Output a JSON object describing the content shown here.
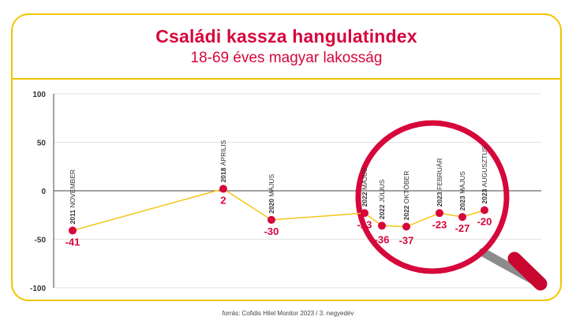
{
  "title": "Családi kassza hangulatindex",
  "subtitle": "18-69 éves magyar lakosság",
  "footer": "forrás: Cofidis Hitel Monitor 2023 / 3. negyedév",
  "colors": {
    "accent": "#d6073b",
    "frame": "#f2c400",
    "line": "#f5c518",
    "magnifier": "#d6073b"
  },
  "chart_data": {
    "type": "line",
    "ylim": [
      -100,
      100
    ],
    "yticks": [
      "100",
      "50",
      "0",
      "-50",
      "-100"
    ],
    "grid": true,
    "series": [
      {
        "points": [
          {
            "year": "2011",
            "month": "NOVEMBER",
            "value": -41,
            "label": "-41"
          },
          {
            "year": "2018",
            "month": "ÁPRILIS",
            "value": 2,
            "label": "2"
          },
          {
            "year": "2020",
            "month": "MÁJUS",
            "value": -30,
            "label": "-30"
          },
          {
            "year": "2022",
            "month": "MÁJUS",
            "value": -23,
            "label": "-23"
          },
          {
            "year": "2022",
            "month": "JÚLIUS",
            "value": -36,
            "label": "-36"
          },
          {
            "year": "2022",
            "month": "OKTÓBER",
            "value": -37,
            "label": "-37"
          },
          {
            "year": "2023",
            "month": "FEBRUÁR",
            "value": -23,
            "label": "-23"
          },
          {
            "year": "2023",
            "month": "MÁJUS",
            "value": -27,
            "label": "-27"
          },
          {
            "year": "2023",
            "month": "AUGUSZTUS",
            "value": -20,
            "label": "-20"
          }
        ]
      }
    ]
  }
}
